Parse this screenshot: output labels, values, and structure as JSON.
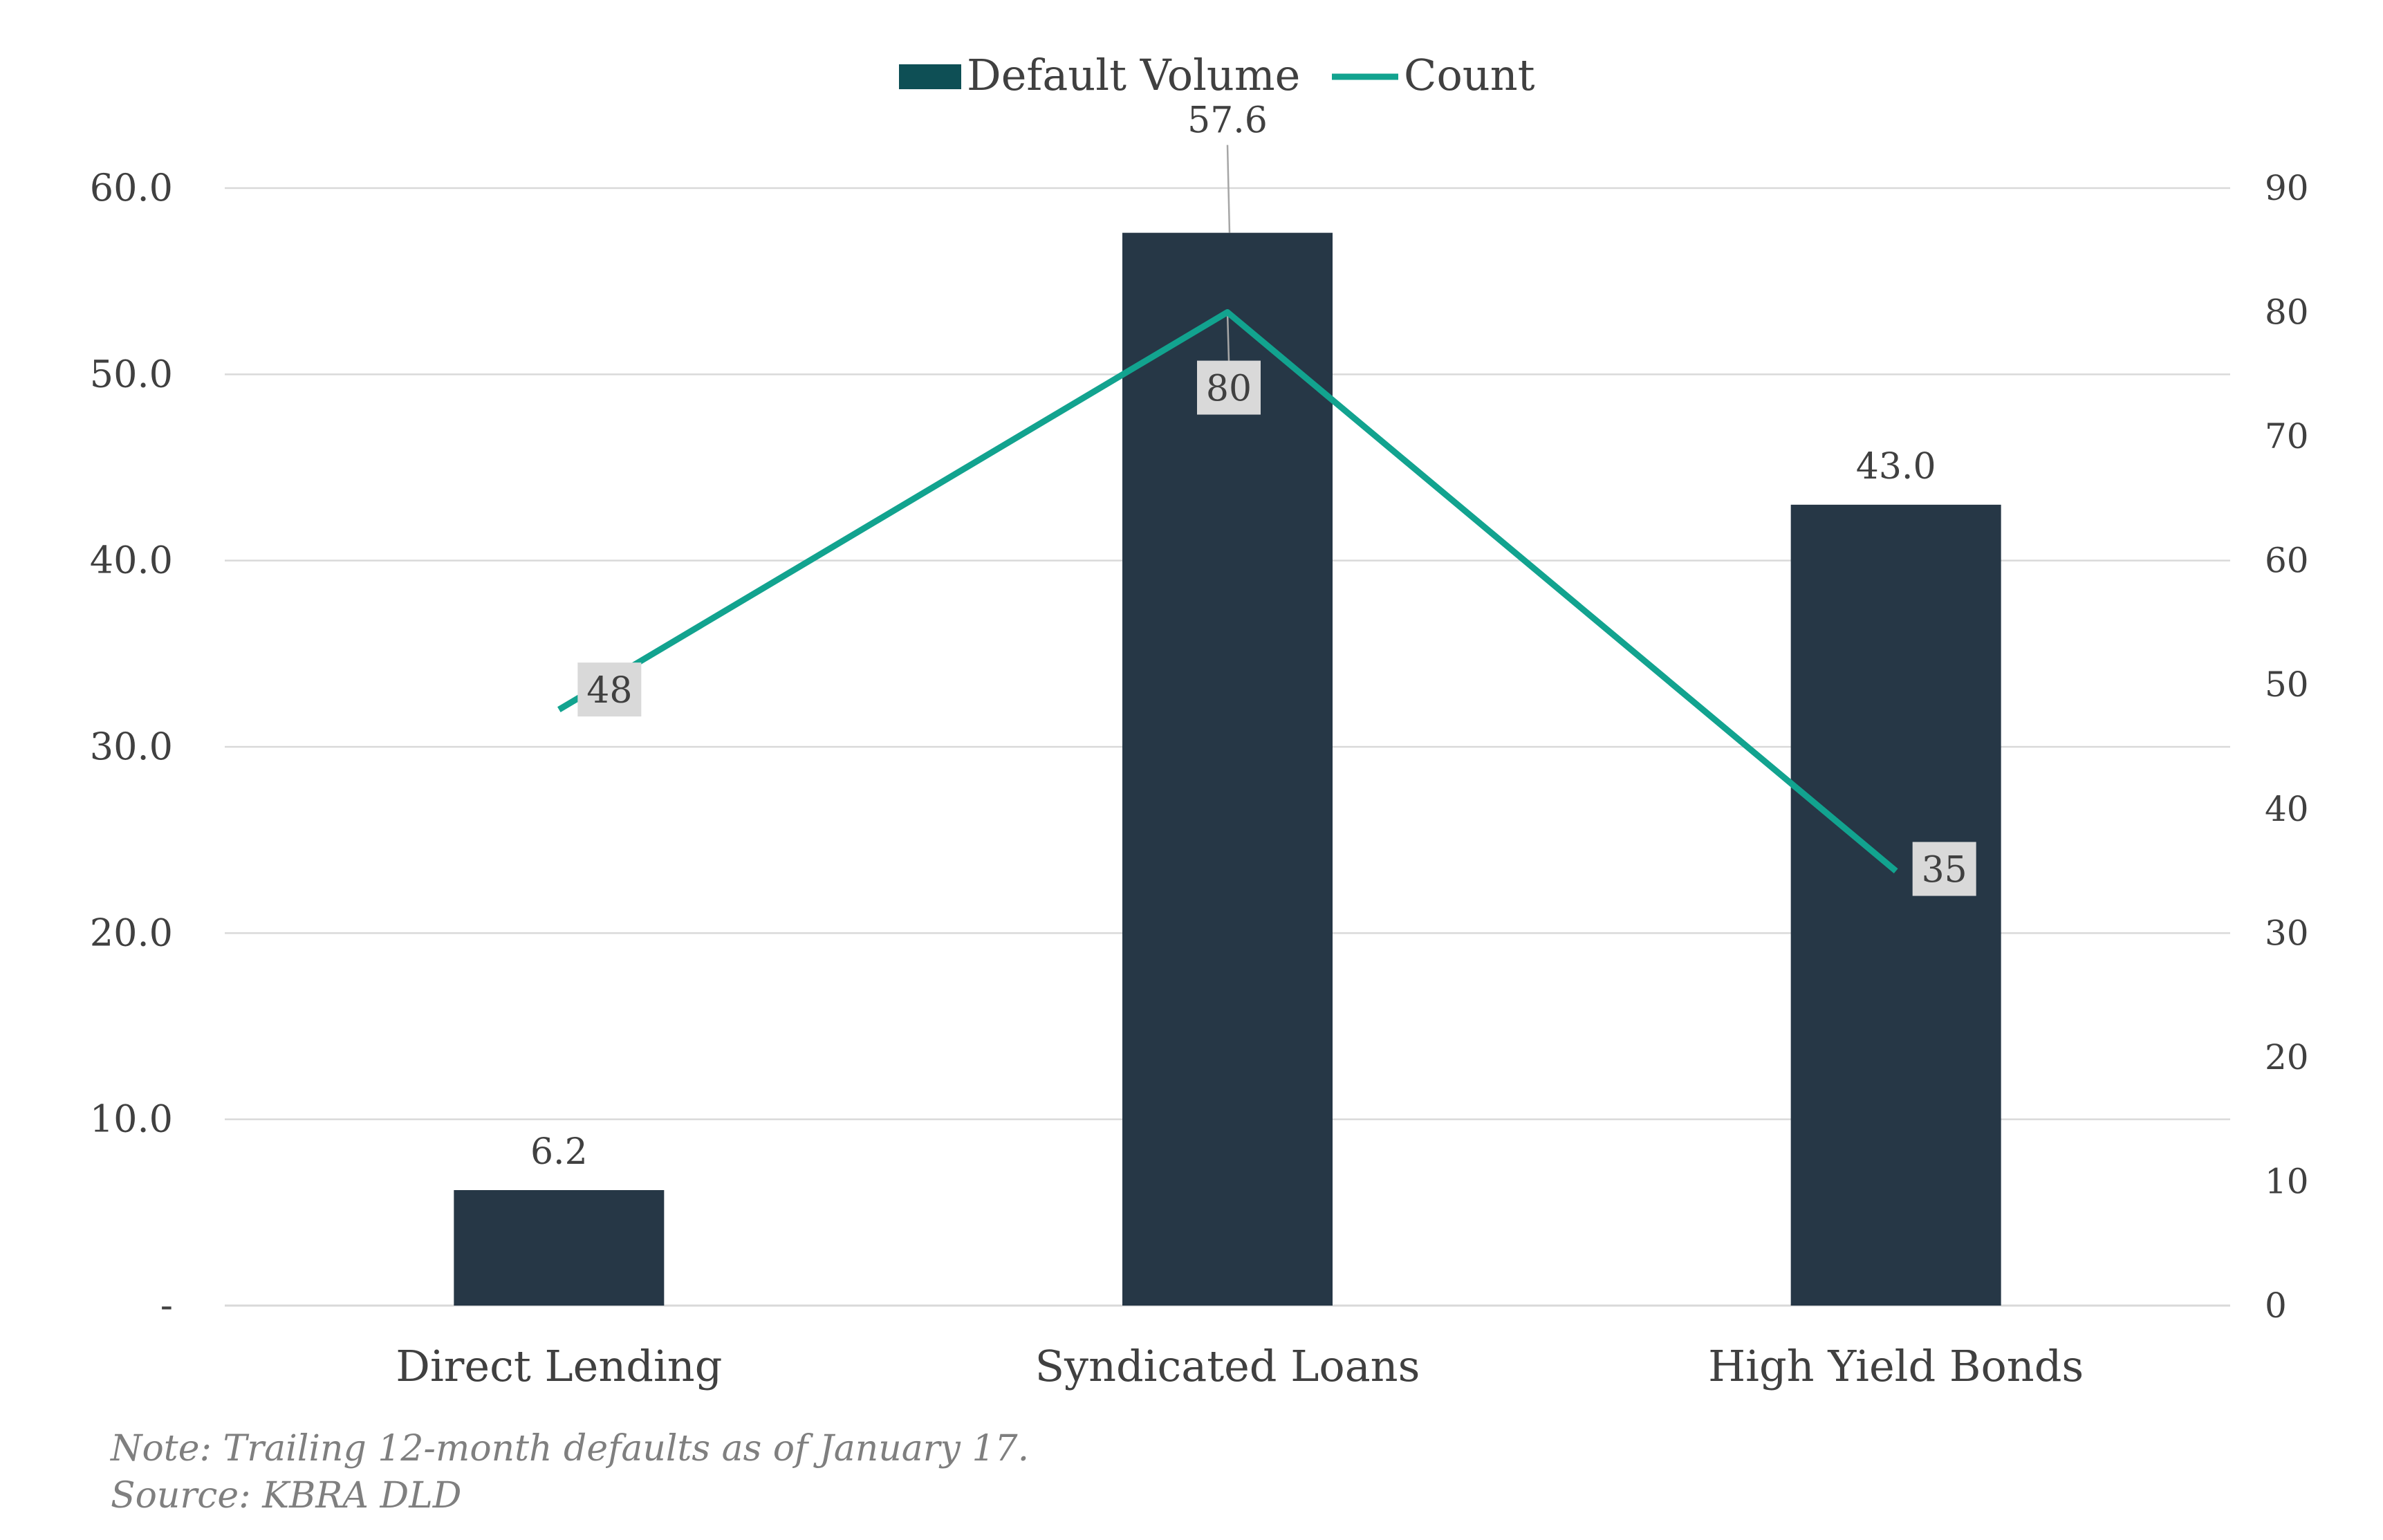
{
  "chart_data": {
    "type": "bar",
    "categories": [
      "Direct Lending",
      "Syndicated Loans",
      "High Yield Bonds"
    ],
    "series": [
      {
        "name": "Default Volume",
        "type": "bar",
        "axis": "left",
        "values": [
          6.2,
          57.6,
          43.0
        ],
        "labels": [
          "6.2",
          "57.6",
          "43.0"
        ]
      },
      {
        "name": "Count",
        "type": "line",
        "axis": "right",
        "values": [
          48,
          80,
          35
        ],
        "labels": [
          "48",
          "80",
          "35"
        ]
      }
    ],
    "y_left": {
      "ylim": [
        0,
        60
      ],
      "ticks": [
        0,
        10,
        20,
        30,
        40,
        50,
        60
      ],
      "tick_labels": [
        "-",
        "10.0",
        "20.0",
        "30.0",
        "40.0",
        "50.0",
        "60.0"
      ]
    },
    "y_right": {
      "ylim": [
        0,
        90
      ],
      "ticks": [
        0,
        10,
        20,
        30,
        40,
        50,
        60,
        70,
        80,
        90
      ],
      "tick_labels": [
        "0",
        "10",
        "20",
        "30",
        "40",
        "50",
        "60",
        "70",
        "80",
        "90"
      ]
    },
    "title": "",
    "xlabel": "",
    "ylabel": "",
    "grid": true,
    "legend": "top-center",
    "colors": {
      "bar": "#263746",
      "legend_bar": "#0e4f55",
      "line": "#12a38f",
      "grid": "#d9d9d9",
      "label_box": "#d9d9d9"
    }
  },
  "footnotes": {
    "note": "Note: Trailing 12-month defaults as of January 17.",
    "source": "Source: KBRA DLD"
  }
}
